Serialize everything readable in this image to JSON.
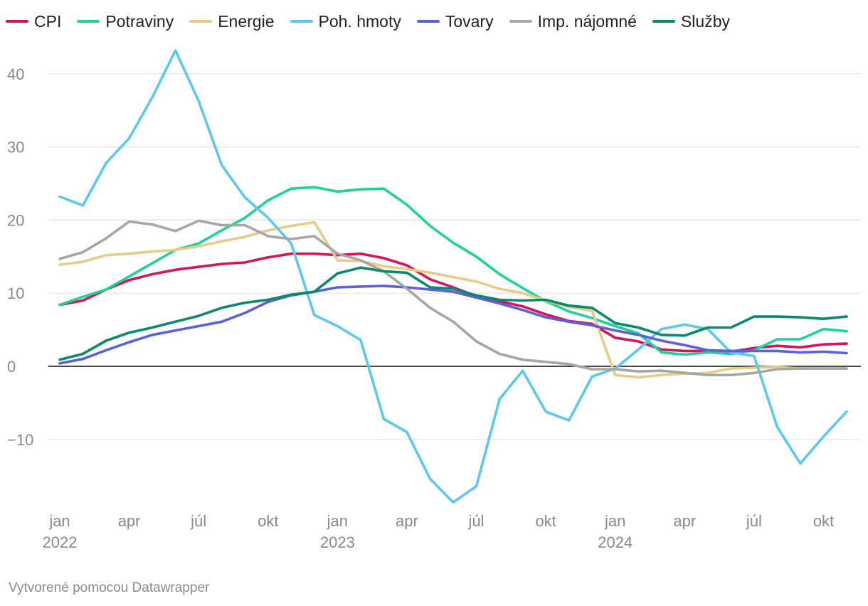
{
  "chart_data": {
    "type": "line",
    "title": "",
    "xlabel": "",
    "ylabel": "",
    "ylim": [
      -19,
      45
    ],
    "y_ticks": [
      40,
      30,
      20,
      10,
      0,
      -10
    ],
    "y_tick_labels": [
      "40",
      "30",
      "20",
      "10",
      "0",
      "−10"
    ],
    "x_range": [
      0,
      34
    ],
    "x_ticks": [
      {
        "index": 0,
        "label": "jan",
        "sublabel": "2022"
      },
      {
        "index": 3,
        "label": "apr",
        "sublabel": ""
      },
      {
        "index": 6,
        "label": "júl",
        "sublabel": ""
      },
      {
        "index": 9,
        "label": "okt",
        "sublabel": ""
      },
      {
        "index": 12,
        "label": "jan",
        "sublabel": "2023"
      },
      {
        "index": 15,
        "label": "apr",
        "sublabel": ""
      },
      {
        "index": 18,
        "label": "júl",
        "sublabel": ""
      },
      {
        "index": 21,
        "label": "okt",
        "sublabel": ""
      },
      {
        "index": 24,
        "label": "jan",
        "sublabel": "2024"
      },
      {
        "index": 27,
        "label": "apr",
        "sublabel": ""
      },
      {
        "index": 30,
        "label": "júl",
        "sublabel": ""
      },
      {
        "index": 33,
        "label": "okt",
        "sublabel": ""
      }
    ],
    "series": [
      {
        "name": "CPI",
        "color": "#d6145a",
        "values": [
          8.4,
          9.0,
          10.5,
          11.8,
          12.6,
          13.2,
          13.6,
          14.0,
          14.2,
          14.9,
          15.4,
          15.4,
          15.2,
          15.4,
          14.8,
          13.8,
          11.9,
          10.8,
          9.6,
          8.9,
          8.2,
          7.1,
          6.2,
          5.8,
          3.9,
          3.4,
          2.3,
          2.1,
          2.1,
          2.0,
          2.5,
          2.8,
          2.6,
          3.0,
          3.1
        ]
      },
      {
        "name": "Potraviny",
        "color": "#1ed39b",
        "values": [
          8.4,
          9.5,
          10.5,
          12.3,
          14.1,
          15.9,
          16.8,
          18.6,
          20.3,
          22.7,
          24.3,
          24.5,
          23.9,
          24.2,
          24.3,
          22.1,
          19.2,
          16.9,
          15.0,
          12.6,
          10.7,
          8.9,
          7.5,
          6.6,
          5.5,
          4.5,
          1.9,
          1.6,
          1.9,
          1.7,
          2.2,
          3.7,
          3.7,
          5.1,
          4.8
        ]
      },
      {
        "name": "Energie",
        "color": "#e6cc86",
        "values": [
          13.9,
          14.3,
          15.2,
          15.4,
          15.7,
          15.9,
          16.4,
          17.1,
          17.7,
          18.6,
          19.2,
          19.7,
          14.5,
          14.4,
          13.7,
          13.3,
          12.8,
          12.2,
          11.6,
          10.6,
          10.0,
          9.0,
          8.1,
          7.6,
          -1.2,
          -1.5,
          -1.2,
          -1.0,
          -0.9,
          -0.3,
          -0.2,
          -0.1,
          -0.3,
          -0.3,
          -0.3
        ]
      },
      {
        "name": "Poh. hmoty",
        "color": "#5cc8f0",
        "values": [
          23.2,
          22.0,
          27.8,
          31.2,
          36.8,
          43.2,
          36.3,
          27.5,
          23.1,
          20.3,
          16.8,
          7.0,
          5.5,
          3.6,
          -7.2,
          -9.0,
          -15.4,
          -18.6,
          -16.4,
          -4.5,
          -0.6,
          -6.2,
          -7.4,
          -1.4,
          -0.3,
          2.3,
          5.1,
          5.7,
          5.1,
          1.9,
          1.4,
          -8.3,
          -13.3,
          -9.6,
          -6.2
        ]
      },
      {
        "name": "Tovary",
        "color": "#5a62d6",
        "values": [
          0.4,
          1.0,
          2.2,
          3.3,
          4.3,
          4.9,
          5.5,
          6.1,
          7.3,
          8.8,
          9.7,
          10.2,
          10.8,
          10.9,
          11.0,
          10.8,
          10.5,
          10.2,
          9.4,
          8.6,
          7.7,
          6.7,
          6.1,
          5.6,
          4.9,
          4.3,
          3.5,
          2.9,
          2.2,
          2.1,
          2.1,
          2.1,
          1.9,
          2.0,
          1.8
        ]
      },
      {
        "name": "Imp. nájomné",
        "color": "#a6a6a6",
        "values": [
          14.7,
          15.6,
          17.5,
          19.8,
          19.4,
          18.5,
          19.9,
          19.3,
          19.3,
          17.8,
          17.4,
          17.8,
          15.4,
          14.5,
          13.0,
          10.6,
          8.0,
          6.1,
          3.4,
          1.7,
          0.9,
          0.6,
          0.3,
          -0.4,
          -0.4,
          -0.7,
          -0.6,
          -0.9,
          -1.2,
          -1.2,
          -0.9,
          -0.4,
          -0.3,
          -0.3,
          -0.3
        ]
      },
      {
        "name": "Služby",
        "color": "#0a8a6a",
        "values": [
          0.9,
          1.7,
          3.5,
          4.6,
          5.3,
          6.1,
          6.9,
          8.0,
          8.7,
          9.1,
          9.8,
          10.2,
          12.7,
          13.5,
          13.0,
          12.8,
          10.8,
          10.6,
          9.7,
          9.1,
          9.0,
          9.1,
          8.3,
          8.0,
          5.9,
          5.3,
          4.3,
          4.2,
          5.3,
          5.3,
          6.8,
          6.8,
          6.7,
          6.5,
          6.8
        ]
      }
    ]
  },
  "footer": {
    "credit": "Vytvorené pomocou Datawrapper"
  }
}
